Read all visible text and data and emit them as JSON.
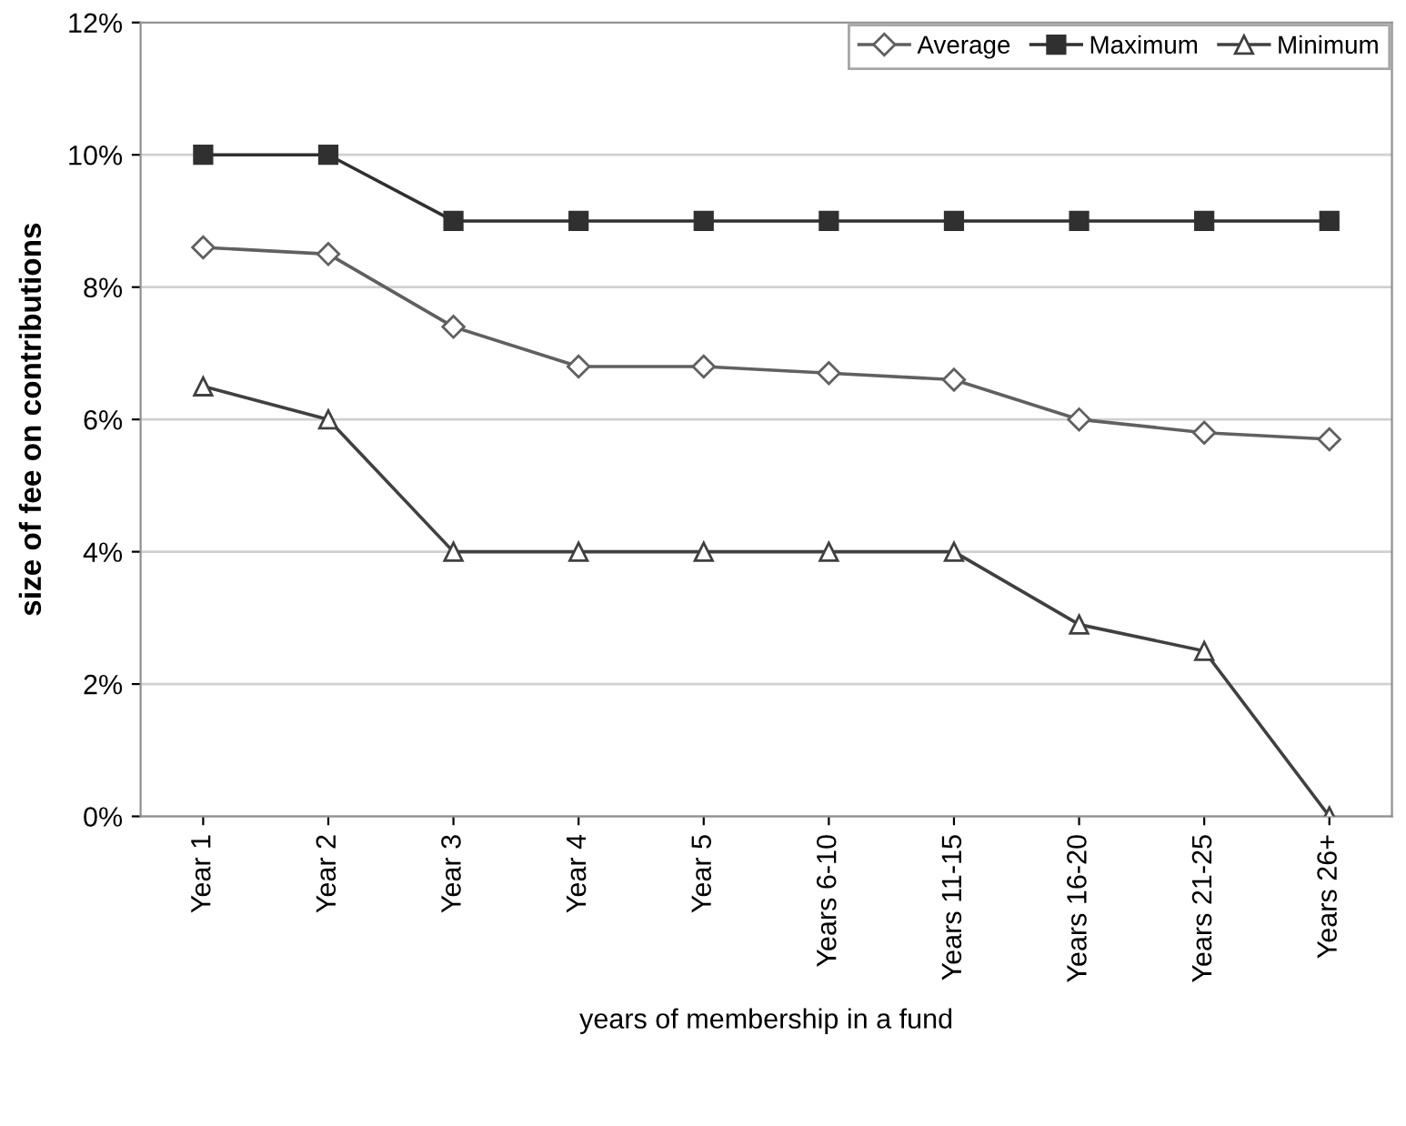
{
  "chart_data": {
    "type": "line",
    "xlabel": "years of membership in a fund",
    "ylabel": "size of fee on contributions",
    "categories": [
      "Year 1",
      "Year 2",
      "Year 3",
      "Year 4",
      "Year 5",
      "Years 6-10",
      "Years 11-15",
      "Years 16-20",
      "Years 21-25",
      "Years 26+"
    ],
    "series": [
      {
        "name": "Average",
        "color": "#606060",
        "marker": "diamond",
        "values": [
          8.6,
          8.5,
          7.4,
          6.8,
          6.8,
          6.7,
          6.6,
          6.0,
          5.8,
          5.7
        ]
      },
      {
        "name": "Maximum",
        "color": "#303030",
        "marker": "square",
        "values": [
          10,
          10,
          9,
          9,
          9,
          9,
          9,
          9,
          9,
          9
        ]
      },
      {
        "name": "Minimum",
        "color": "#404040",
        "marker": "triangle",
        "values": [
          6.5,
          6,
          4,
          4,
          4,
          4,
          4,
          2.9,
          2.5,
          0
        ]
      }
    ],
    "ylim": [
      0,
      12
    ],
    "yticks": [
      {
        "value": 0,
        "label": "0%"
      },
      {
        "value": 2,
        "label": "2%"
      },
      {
        "value": 4,
        "label": "4%"
      },
      {
        "value": 6,
        "label": "6%"
      },
      {
        "value": 8,
        "label": "8%"
      },
      {
        "value": 10,
        "label": "10%"
      },
      {
        "value": 12,
        "label": "12%"
      }
    ],
    "grid": "y",
    "legend": "top right",
    "line_style": "solid"
  }
}
